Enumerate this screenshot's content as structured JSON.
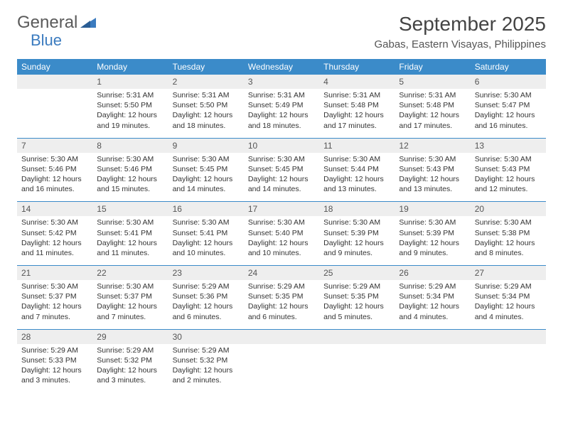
{
  "logo": {
    "text1": "General",
    "text2": "Blue"
  },
  "title": "September 2025",
  "location": "Gabas, Eastern Visayas, Philippines",
  "colors": {
    "header_bg": "#3b8bc9",
    "header_text": "#ffffff",
    "daynum_bg": "#eeeeee",
    "body_text": "#333333",
    "accent": "#3b7bbf"
  },
  "day_labels": [
    "Sunday",
    "Monday",
    "Tuesday",
    "Wednesday",
    "Thursday",
    "Friday",
    "Saturday"
  ],
  "weeks": [
    [
      {
        "n": "",
        "sr": "",
        "ss": "",
        "dl": ""
      },
      {
        "n": "1",
        "sr": "Sunrise: 5:31 AM",
        "ss": "Sunset: 5:50 PM",
        "dl": "Daylight: 12 hours and 19 minutes."
      },
      {
        "n": "2",
        "sr": "Sunrise: 5:31 AM",
        "ss": "Sunset: 5:50 PM",
        "dl": "Daylight: 12 hours and 18 minutes."
      },
      {
        "n": "3",
        "sr": "Sunrise: 5:31 AM",
        "ss": "Sunset: 5:49 PM",
        "dl": "Daylight: 12 hours and 18 minutes."
      },
      {
        "n": "4",
        "sr": "Sunrise: 5:31 AM",
        "ss": "Sunset: 5:48 PM",
        "dl": "Daylight: 12 hours and 17 minutes."
      },
      {
        "n": "5",
        "sr": "Sunrise: 5:31 AM",
        "ss": "Sunset: 5:48 PM",
        "dl": "Daylight: 12 hours and 17 minutes."
      },
      {
        "n": "6",
        "sr": "Sunrise: 5:30 AM",
        "ss": "Sunset: 5:47 PM",
        "dl": "Daylight: 12 hours and 16 minutes."
      }
    ],
    [
      {
        "n": "7",
        "sr": "Sunrise: 5:30 AM",
        "ss": "Sunset: 5:46 PM",
        "dl": "Daylight: 12 hours and 16 minutes."
      },
      {
        "n": "8",
        "sr": "Sunrise: 5:30 AM",
        "ss": "Sunset: 5:46 PM",
        "dl": "Daylight: 12 hours and 15 minutes."
      },
      {
        "n": "9",
        "sr": "Sunrise: 5:30 AM",
        "ss": "Sunset: 5:45 PM",
        "dl": "Daylight: 12 hours and 14 minutes."
      },
      {
        "n": "10",
        "sr": "Sunrise: 5:30 AM",
        "ss": "Sunset: 5:45 PM",
        "dl": "Daylight: 12 hours and 14 minutes."
      },
      {
        "n": "11",
        "sr": "Sunrise: 5:30 AM",
        "ss": "Sunset: 5:44 PM",
        "dl": "Daylight: 12 hours and 13 minutes."
      },
      {
        "n": "12",
        "sr": "Sunrise: 5:30 AM",
        "ss": "Sunset: 5:43 PM",
        "dl": "Daylight: 12 hours and 13 minutes."
      },
      {
        "n": "13",
        "sr": "Sunrise: 5:30 AM",
        "ss": "Sunset: 5:43 PM",
        "dl": "Daylight: 12 hours and 12 minutes."
      }
    ],
    [
      {
        "n": "14",
        "sr": "Sunrise: 5:30 AM",
        "ss": "Sunset: 5:42 PM",
        "dl": "Daylight: 12 hours and 11 minutes."
      },
      {
        "n": "15",
        "sr": "Sunrise: 5:30 AM",
        "ss": "Sunset: 5:41 PM",
        "dl": "Daylight: 12 hours and 11 minutes."
      },
      {
        "n": "16",
        "sr": "Sunrise: 5:30 AM",
        "ss": "Sunset: 5:41 PM",
        "dl": "Daylight: 12 hours and 10 minutes."
      },
      {
        "n": "17",
        "sr": "Sunrise: 5:30 AM",
        "ss": "Sunset: 5:40 PM",
        "dl": "Daylight: 12 hours and 10 minutes."
      },
      {
        "n": "18",
        "sr": "Sunrise: 5:30 AM",
        "ss": "Sunset: 5:39 PM",
        "dl": "Daylight: 12 hours and 9 minutes."
      },
      {
        "n": "19",
        "sr": "Sunrise: 5:30 AM",
        "ss": "Sunset: 5:39 PM",
        "dl": "Daylight: 12 hours and 9 minutes."
      },
      {
        "n": "20",
        "sr": "Sunrise: 5:30 AM",
        "ss": "Sunset: 5:38 PM",
        "dl": "Daylight: 12 hours and 8 minutes."
      }
    ],
    [
      {
        "n": "21",
        "sr": "Sunrise: 5:30 AM",
        "ss": "Sunset: 5:37 PM",
        "dl": "Daylight: 12 hours and 7 minutes."
      },
      {
        "n": "22",
        "sr": "Sunrise: 5:30 AM",
        "ss": "Sunset: 5:37 PM",
        "dl": "Daylight: 12 hours and 7 minutes."
      },
      {
        "n": "23",
        "sr": "Sunrise: 5:29 AM",
        "ss": "Sunset: 5:36 PM",
        "dl": "Daylight: 12 hours and 6 minutes."
      },
      {
        "n": "24",
        "sr": "Sunrise: 5:29 AM",
        "ss": "Sunset: 5:35 PM",
        "dl": "Daylight: 12 hours and 6 minutes."
      },
      {
        "n": "25",
        "sr": "Sunrise: 5:29 AM",
        "ss": "Sunset: 5:35 PM",
        "dl": "Daylight: 12 hours and 5 minutes."
      },
      {
        "n": "26",
        "sr": "Sunrise: 5:29 AM",
        "ss": "Sunset: 5:34 PM",
        "dl": "Daylight: 12 hours and 4 minutes."
      },
      {
        "n": "27",
        "sr": "Sunrise: 5:29 AM",
        "ss": "Sunset: 5:34 PM",
        "dl": "Daylight: 12 hours and 4 minutes."
      }
    ],
    [
      {
        "n": "28",
        "sr": "Sunrise: 5:29 AM",
        "ss": "Sunset: 5:33 PM",
        "dl": "Daylight: 12 hours and 3 minutes."
      },
      {
        "n": "29",
        "sr": "Sunrise: 5:29 AM",
        "ss": "Sunset: 5:32 PM",
        "dl": "Daylight: 12 hours and 3 minutes."
      },
      {
        "n": "30",
        "sr": "Sunrise: 5:29 AM",
        "ss": "Sunset: 5:32 PM",
        "dl": "Daylight: 12 hours and 2 minutes."
      },
      {
        "n": "",
        "sr": "",
        "ss": "",
        "dl": ""
      },
      {
        "n": "",
        "sr": "",
        "ss": "",
        "dl": ""
      },
      {
        "n": "",
        "sr": "",
        "ss": "",
        "dl": ""
      },
      {
        "n": "",
        "sr": "",
        "ss": "",
        "dl": ""
      }
    ]
  ]
}
